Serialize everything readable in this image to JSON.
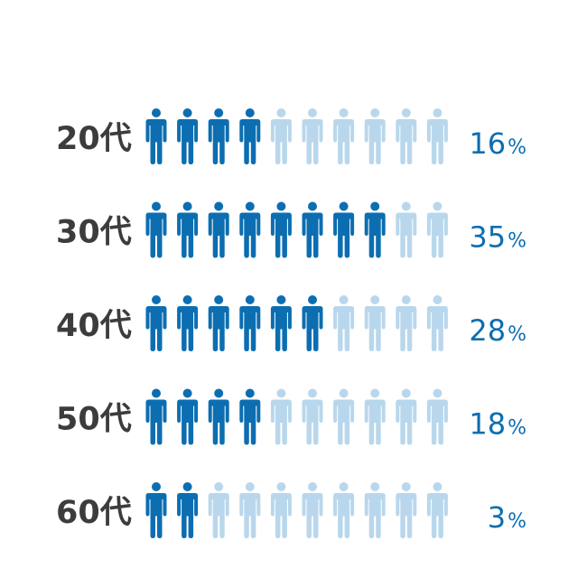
{
  "chart_data": {
    "type": "pictograph",
    "icon": "person-icon",
    "icons_per_row": 10,
    "unit": "%",
    "rows": [
      {
        "label": "20代",
        "value": 16,
        "filled_icons": 4
      },
      {
        "label": "30代",
        "value": 35,
        "filled_icons": 8
      },
      {
        "label": "40代",
        "value": 28,
        "filled_icons": 6
      },
      {
        "label": "50代",
        "value": 18,
        "filled_icons": 4
      },
      {
        "label": "60代",
        "value": 3,
        "filled_icons": 2
      }
    ]
  },
  "colors": {
    "filled": "#0c6eb1",
    "empty": "#b9d7ec",
    "value_text": "#0c6eb1",
    "label_text": "#3c3c3c"
  }
}
